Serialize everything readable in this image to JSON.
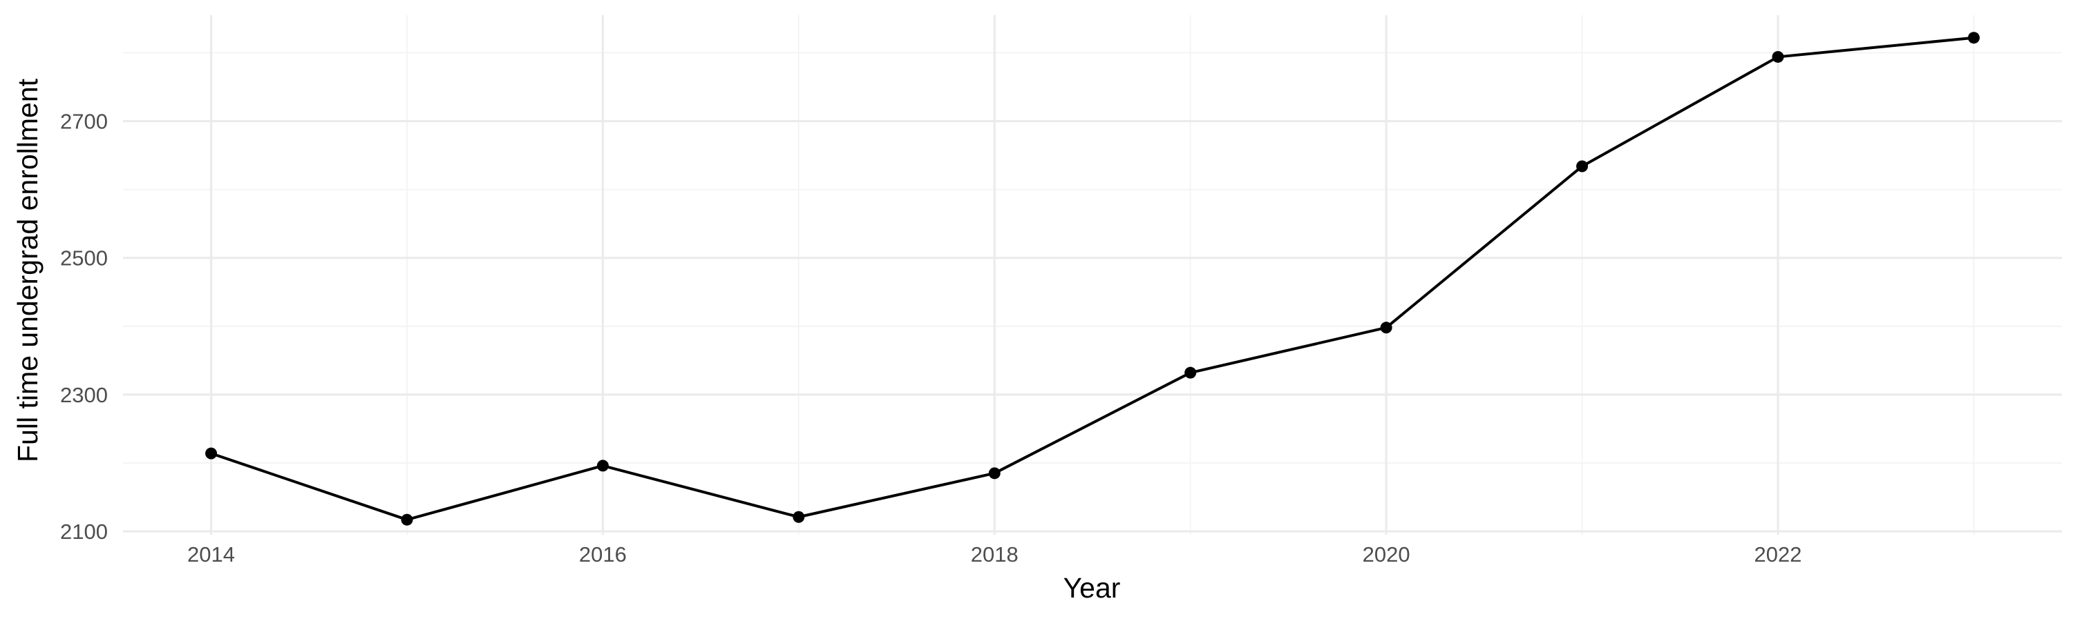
{
  "chart_data": {
    "type": "line",
    "title": "",
    "xlabel": "Year",
    "ylabel": "Full time undergrad enrollment",
    "x": [
      2014,
      2015,
      2016,
      2017,
      2018,
      2019,
      2020,
      2021,
      2022,
      2023
    ],
    "series": [
      {
        "values": [
          2214,
          2117,
          2196,
          2121,
          2185,
          2332,
          2398,
          2634,
          2794,
          2822
        ]
      }
    ],
    "xlim": [
      2013.55,
      2023.45
    ],
    "ylim": [
      2095,
      2855
    ],
    "x_ticks": [
      2014,
      2016,
      2018,
      2020,
      2022
    ],
    "x_tick_labels": [
      "2014",
      "2016",
      "2018",
      "2020",
      "2022"
    ],
    "y_ticks": [
      2100,
      2300,
      2500,
      2700
    ],
    "y_tick_labels": [
      "2100",
      "2300",
      "2500",
      "2700"
    ],
    "grid": true,
    "legend": "none",
    "colors": {
      "line": "#000000",
      "point": "#000000",
      "grid": "#ebebeb",
      "tick_text": "#4d4d4d"
    }
  }
}
